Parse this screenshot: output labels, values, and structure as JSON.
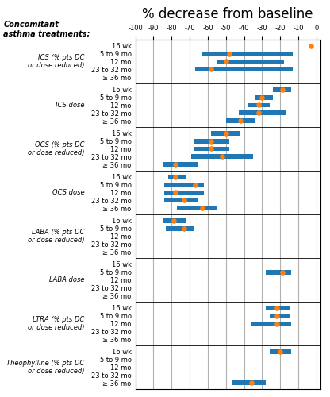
{
  "chart_data": {
    "type": "range",
    "orientation": "horizontal",
    "title": "% decrease from baseline",
    "header": "Concomitant\nasthma treatments:",
    "xlim": [
      -100,
      2
    ],
    "xticks": [
      -100,
      -90,
      -80,
      -70,
      -60,
      -50,
      -40,
      -30,
      -20,
      -10,
      0
    ],
    "grid": true,
    "groups": [
      {
        "label": "ICS (% pts DC\nor dose reduced)",
        "categories": [
          "16 wk",
          "5 to 9 mo",
          "12 mo",
          "23 to 32 mo",
          "≥ 36 mo"
        ],
        "low": [
          null,
          -63,
          -55,
          -67,
          null
        ],
        "high": [
          null,
          -13,
          -18,
          -13,
          null
        ],
        "values": [
          -3,
          -48,
          -50,
          -58,
          null
        ]
      },
      {
        "label": "ICS dose",
        "categories": [
          "16 wk",
          "5 to 9 mo",
          "12 mo",
          "23 to 32 mo",
          "≥ 36 mo"
        ],
        "low": [
          -24,
          -34,
          -38,
          -43,
          -50
        ],
        "high": [
          -14,
          -24,
          -26,
          -17,
          -34
        ],
        "values": [
          -19,
          -30,
          -32,
          -32,
          -42
        ]
      },
      {
        "label": "OCS (% pts DC\nor dose reduced)",
        "categories": [
          "16 wk",
          "5 to 9 mo",
          "12 mo",
          "23 to 32 mo",
          "≥ 36 mo"
        ],
        "low": [
          -58,
          -68,
          -68,
          -69,
          -85
        ],
        "high": [
          -42,
          -48,
          -48,
          -35,
          -65
        ],
        "values": [
          -50,
          -58,
          -58,
          -52,
          -78
        ]
      },
      {
        "label": "OCS dose",
        "categories": [
          "16 wk",
          "5 to 9 mo",
          "12 mo",
          "23 to 32 mo",
          "≥ 36 mo"
        ],
        "low": [
          -82,
          -84,
          -84,
          -84,
          -77
        ],
        "high": [
          -72,
          -62,
          -62,
          -65,
          -55
        ],
        "values": [
          -78,
          -67,
          -78,
          -73,
          -63
        ]
      },
      {
        "label": "LABA (% pts DC\nor dose reduced)",
        "categories": [
          "16 wk",
          "5 to 9 mo",
          "12 mo",
          "23 to 32 mo",
          "≥ 36 mo"
        ],
        "low": [
          -85,
          -83,
          null,
          null,
          null
        ],
        "high": [
          -72,
          -68,
          null,
          null,
          null
        ],
        "values": [
          -79,
          -73,
          null,
          null,
          null
        ]
      },
      {
        "label": "LABA dose",
        "categories": [
          "16 wk",
          "5 to 9 mo",
          "12 mo",
          "23 to 32 mo",
          "≥ 36 mo"
        ],
        "low": [
          null,
          -28,
          null,
          null,
          null
        ],
        "high": [
          null,
          -14,
          null,
          null,
          null
        ],
        "values": [
          null,
          -19,
          null,
          null,
          null
        ]
      },
      {
        "label": "LTRA (% pts DC\nor dose reduced)",
        "categories": [
          "16 wk",
          "5 to 9 mo",
          "12 mo",
          "23 to 32 mo",
          "≥ 36 mo"
        ],
        "low": [
          -28,
          -26,
          -36,
          null,
          null
        ],
        "high": [
          -15,
          -15,
          -14,
          null,
          null
        ],
        "values": [
          -22,
          -22,
          -22,
          null,
          null
        ]
      },
      {
        "label": "Theophylline (% pts DC\nor dose reduced)",
        "categories": [
          "16 wk",
          "5 to 9 mo",
          "12 mo",
          "23 to 32 mo",
          "≥ 36 mo"
        ],
        "low": [
          -26,
          null,
          null,
          null,
          -47
        ],
        "high": [
          -14,
          null,
          null,
          null,
          -28
        ],
        "values": [
          -20,
          null,
          null,
          null,
          -36
        ]
      }
    ]
  }
}
